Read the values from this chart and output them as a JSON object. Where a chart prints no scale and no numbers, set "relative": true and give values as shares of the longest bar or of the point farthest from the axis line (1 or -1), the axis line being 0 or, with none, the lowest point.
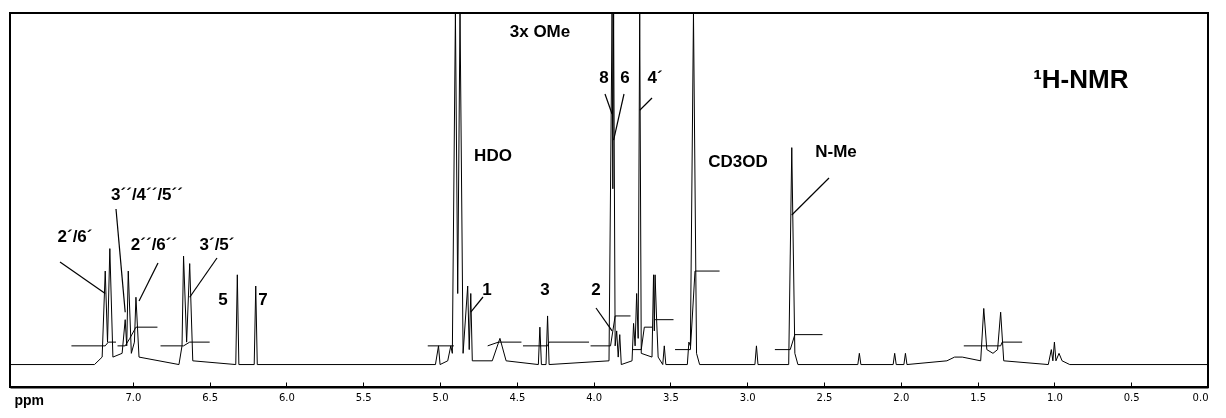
{
  "chart_data": {
    "type": "line",
    "title": "¹H-NMR",
    "xlabel": "ppm",
    "relative": true,
    "xlim": [
      7.8,
      0.0
    ],
    "xticks": [
      {
        "value": 7.0,
        "label": "7.0"
      },
      6.5,
      {
        "value": 6.0,
        "label": "6.0"
      },
      5.5,
      {
        "value": 5.0,
        "label": "5.0"
      },
      4.5,
      {
        "value": 4.0,
        "label": "4.0"
      },
      3.5,
      {
        "value": 3.0,
        "label": "3.0"
      },
      2.5,
      {
        "value": 2.0,
        "label": "2.0"
      },
      1.5,
      {
        "value": 1.0,
        "label": "1.0"
      },
      0.5,
      {
        "value": 0.0,
        "label": "0.0"
      }
    ],
    "series": [
      {
        "type": "line",
        "color": "#000000",
        "x": [
          7.8,
          7.25,
          7.2,
          7.18,
          7.165,
          7.15,
          7.13,
          7.07,
          7.05,
          7.04,
          7.03,
          7.01,
          6.99,
          6.98,
          6.96,
          6.7,
          6.68,
          6.67,
          6.65,
          6.63,
          6.61,
          6.33,
          6.32,
          6.31,
          6.21,
          6.2,
          6.19,
          5.03,
          5.01,
          5.0,
          4.95,
          4.93,
          4.92,
          4.9,
          4.885,
          4.87,
          4.85,
          4.82,
          4.81,
          4.8,
          4.79,
          4.66,
          4.61,
          4.57,
          4.36,
          4.35,
          4.34,
          4.31,
          4.3,
          4.29,
          3.9,
          3.88,
          3.875,
          3.87,
          3.86,
          3.85,
          3.84,
          3.83,
          3.82,
          3.75,
          3.74,
          3.73,
          3.72,
          3.71,
          3.7,
          3.69,
          3.62,
          3.61,
          3.605,
          3.6,
          3.59,
          3.58,
          3.55,
          3.54,
          3.53,
          3.39,
          3.38,
          3.37,
          3.35,
          3.33,
          3.31,
          2.95,
          2.94,
          2.93,
          2.73,
          2.71,
          2.69,
          2.67,
          2.28,
          2.27,
          2.26,
          2.05,
          2.04,
          2.03,
          1.98,
          1.97,
          1.96,
          1.7,
          1.65,
          1.6,
          1.48,
          1.46,
          1.44,
          1.4,
          1.37,
          1.35,
          1.33,
          1.04,
          1.02,
          1.01,
          1.0,
          0.99,
          0.97,
          0.95,
          0.9,
          0.0
        ],
        "values": [
          0.06,
          0.06,
          0.08,
          0.31,
          0.12,
          0.37,
          0.08,
          0.09,
          0.18,
          0.11,
          0.31,
          0.09,
          0.12,
          0.24,
          0.08,
          0.06,
          0.11,
          0.35,
          0.12,
          0.33,
          0.07,
          0.06,
          0.3,
          0.06,
          0.06,
          0.27,
          0.06,
          0.06,
          0.11,
          0.06,
          0.07,
          0.11,
          0.09,
          1,
          0.25,
          1,
          0.09,
          0.27,
          0.1,
          0.25,
          0.07,
          0.07,
          0.13,
          0.07,
          0.06,
          0.16,
          0.06,
          0.06,
          0.19,
          0.06,
          0.07,
          1,
          0.53,
          1,
          0.11,
          0.15,
          0.08,
          0.14,
          0.06,
          0.07,
          0.17,
          0.11,
          0.25,
          0.13,
          1,
          0.09,
          0.08,
          0.3,
          0.15,
          0.3,
          0.18,
          0.08,
          0.06,
          0.11,
          0.06,
          0.06,
          0.12,
          0.11,
          1,
          0.09,
          0.06,
          0.06,
          0.11,
          0.06,
          0.06,
          0.64,
          0.09,
          0.06,
          0.06,
          0.09,
          0.06,
          0.06,
          0.09,
          0.06,
          0.06,
          0.09,
          0.06,
          0.07,
          0.08,
          0.08,
          0.07,
          0.21,
          0.1,
          0.09,
          0.1,
          0.2,
          0.07,
          0.06,
          0.1,
          0.07,
          0.12,
          0.07,
          0.09,
          0.07,
          0.06,
          0.06
        ]
      },
      {
        "type": "line",
        "color": "#000000",
        "x": [
          7.4,
          7.18,
          7.16,
          7.11,
          7.105,
          7.1,
          7.05,
          7.02,
          6.98,
          6.84,
          6.83,
          6.82,
          6.67,
          6.63,
          6.5,
          6.0,
          5.08,
          4.91,
          4.8,
          4.69,
          4.62,
          4.47,
          4.465,
          4.46,
          4.3,
          4.29,
          4.03,
          4.025,
          4.02,
          3.89,
          3.86,
          3.76,
          3.755,
          3.75,
          3.69,
          3.67,
          3.62,
          3.605,
          3.6,
          3.48,
          3.475,
          3.47,
          3.37,
          3.34,
          3.18,
          3.0,
          2.82,
          2.72,
          2.69,
          2.51,
          2.0,
          1.59,
          1.35,
          1.34,
          1.21
        ],
        "values": [
          0.11,
          0.11,
          0.12,
          0.12,
          null,
          0.11,
          0.11,
          0.13,
          0.16,
          0.16,
          null,
          0.11,
          0.11,
          0.12,
          0.12,
          null,
          0.11,
          0.11,
          null,
          0.11,
          0.12,
          0.12,
          null,
          0.11,
          0.11,
          0.12,
          0.12,
          null,
          0.11,
          0.11,
          0.19,
          0.19,
          null,
          0.1,
          0.1,
          0.16,
          0.16,
          null,
          0.18,
          0.18,
          null,
          0.1,
          0.1,
          0.31,
          0.31,
          null,
          0.1,
          0.1,
          0.14,
          0.14,
          null,
          0.11,
          0.11,
          0.12,
          0.12
        ]
      }
    ],
    "annotations": [
      {
        "text": "2´/6´",
        "x": 7.18,
        "y": 0.25
      },
      {
        "text": "3´´/4´´/5´´",
        "x": 7.05,
        "y": 0.2
      },
      {
        "text": "2´´/6´´",
        "x": 6.96,
        "y": 0.23
      },
      {
        "text": "3´/5´",
        "x": 6.63,
        "y": 0.24
      },
      {
        "text": "5",
        "x": 6.32,
        "y": 0.3
      },
      {
        "text": "7",
        "x": 6.2,
        "y": 0.27
      },
      "HDO",
      "3x OMe",
      {
        "text": "1",
        "x": 4.8,
        "y": 0.2
      },
      {
        "text": "3",
        "x": 4.3,
        "y": 0.19
      },
      {
        "text": "2",
        "x": 3.88,
        "y": 0.15
      },
      {
        "text": "8",
        "x": 3.88,
        "y": 0.73
      },
      {
        "text": "6",
        "x": 3.87,
        "y": 0.66
      },
      {
        "text": "4´",
        "x": 3.7,
        "y": 0.74
      },
      "CD3OD",
      {
        "text": "N-Me",
        "x": 2.71,
        "y": 0.46
      }
    ]
  }
}
